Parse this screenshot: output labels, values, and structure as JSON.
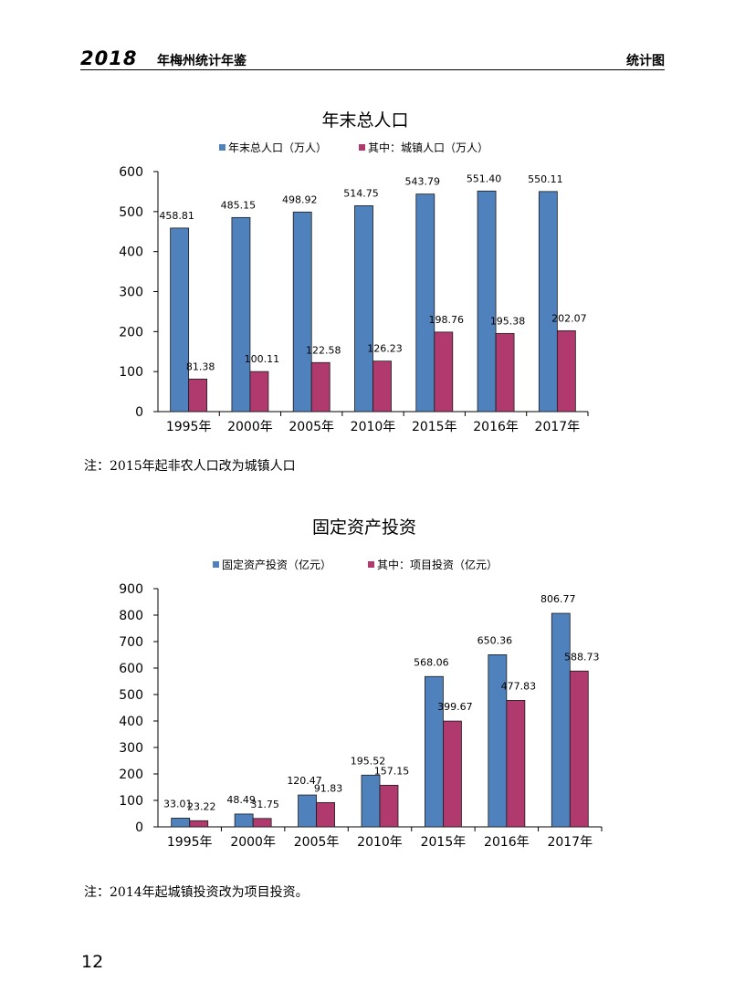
{
  "header": {
    "year": "2018",
    "title": "年梅州统计年鉴",
    "section": "统计图"
  },
  "page_number": "12",
  "notes": [
    "注：2015年起非农人口改为城镇人口",
    "注：2014年起城镇投资改为项目投资。"
  ],
  "colors": {
    "series_1": "#4f81bd",
    "series_2": "#b03a6e"
  },
  "chart_data": [
    {
      "type": "bar",
      "title": "年末总人口",
      "categories": [
        "1995年",
        "2000年",
        "2005年",
        "2010年",
        "2015年",
        "2016年",
        "2017年"
      ],
      "series": [
        {
          "name": "年末总人口（万人）",
          "values": [
            458.81,
            485.15,
            498.92,
            514.75,
            543.79,
            551.4,
            550.11
          ],
          "labels": [
            "458.81",
            "485.15",
            "498.92",
            "514.75",
            "543.79",
            "551.40",
            "550.11"
          ]
        },
        {
          "name": "其中：城镇人口（万人）",
          "values": [
            81.38,
            100.11,
            122.58,
            126.23,
            198.76,
            195.38,
            202.07
          ],
          "labels": [
            "81.38",
            "100.11",
            "122.58",
            "126.23",
            "198.76",
            "195.38",
            "202.07"
          ]
        }
      ],
      "ylim": [
        0,
        600
      ],
      "yticks": [
        "0",
        "100",
        "200",
        "300",
        "400",
        "500",
        "600"
      ],
      "legend": "top-center",
      "grid": false
    },
    {
      "type": "bar",
      "title": "固定资产投资",
      "categories": [
        "1995年",
        "2000年",
        "2005年",
        "2010年",
        "2015年",
        "2016年",
        "2017年"
      ],
      "series": [
        {
          "name": "固定资产投资（亿元）",
          "values": [
            33.01,
            48.49,
            120.47,
            195.52,
            568.06,
            650.36,
            806.77
          ],
          "labels": [
            "33.01",
            "48.49",
            "120.47",
            "195.52",
            "568.06",
            "650.36",
            "806.77"
          ]
        },
        {
          "name": "其中：项目投资（亿元）",
          "values": [
            23.22,
            31.75,
            91.83,
            157.15,
            399.67,
            477.83,
            588.73
          ],
          "labels": [
            "23.22",
            "31.75",
            "91.83",
            "157.15",
            "399.67",
            "477.83",
            "588.73"
          ]
        }
      ],
      "ylim": [
        0,
        900
      ],
      "yticks": [
        "0",
        "100",
        "200",
        "300",
        "400",
        "500",
        "600",
        "700",
        "800",
        "900"
      ],
      "legend": "top-center",
      "grid": false
    }
  ]
}
